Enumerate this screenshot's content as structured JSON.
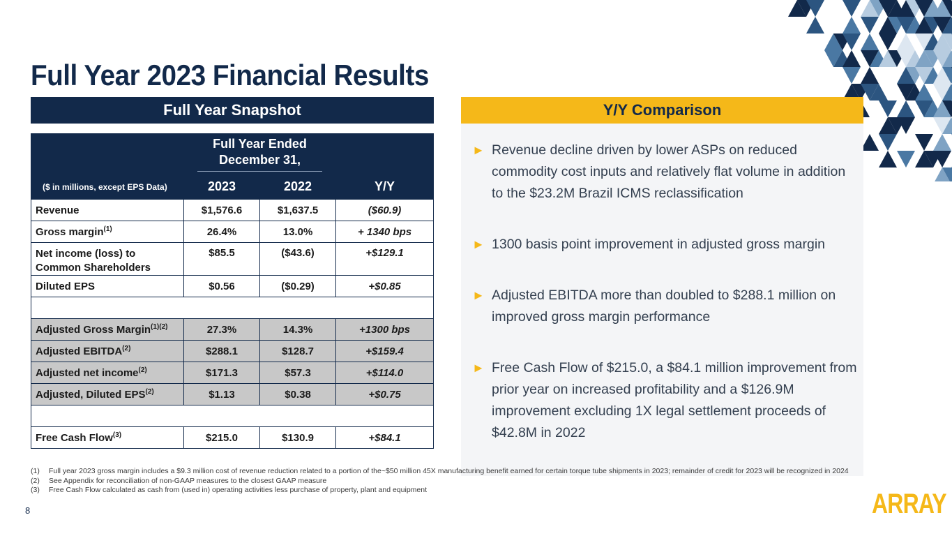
{
  "title": "Full Year 2023 Financial Results",
  "left_header": "Full Year Snapshot",
  "right_header": "Y/Y Comparison",
  "table": {
    "period_header_line1": "Full Year Ended",
    "period_header_line2": "December 31,",
    "units_label": "($ in millions, except EPS Data)",
    "col_2023": "2023",
    "col_2022": "2022",
    "col_yoy": "Y/Y",
    "rows": [
      {
        "label": "Revenue",
        "sup": "",
        "v2023": "$1,576.6",
        "v2022": "$1,637.5",
        "yoy": "($60.9)"
      },
      {
        "label": "Gross margin",
        "sup": "(1)",
        "v2023": "26.4%",
        "v2022": "13.0%",
        "yoy": "+ 1340 bps"
      },
      {
        "label_line1": "Net income (loss) to",
        "label_line2": "Common Shareholders",
        "v2023": "$85.5",
        "v2022": "($43.6)",
        "yoy": "+$129.1"
      },
      {
        "label": "Diluted EPS",
        "sup": "",
        "v2023": "$0.56",
        "v2022": "($0.29)",
        "yoy": "+$0.85"
      },
      {
        "label": "Adjusted Gross Margin",
        "sup": "(1)(2)",
        "v2023": "27.3%",
        "v2022": "14.3%",
        "yoy": "+1300 bps"
      },
      {
        "label": "Adjusted EBITDA",
        "sup": "(2)",
        "v2023": "$288.1",
        "v2022": "$128.7",
        "yoy": "+$159.4"
      },
      {
        "label": "Adjusted net income",
        "sup": "(2)",
        "v2023": "$171.3",
        "v2022": "$57.3",
        "yoy": "+$114.0"
      },
      {
        "label": "Adjusted, Diluted EPS",
        "sup": "(2)",
        "v2023": "$1.13",
        "v2022": "$0.38",
        "yoy": "+$0.75"
      },
      {
        "label": "Free Cash Flow",
        "sup": "(3)",
        "v2023": "$215.0",
        "v2022": "$130.9",
        "yoy": "+$84.1"
      }
    ]
  },
  "bullets": [
    "Revenue decline driven by lower ASPs on reduced commodity cost inputs and relatively flat volume in addition to the $23.2M Brazil ICMS reclassification",
    "1300 basis point improvement in adjusted gross margin",
    "Adjusted EBITDA more than doubled to $288.1 million on improved gross margin performance",
    "Free Cash Flow of $215.0, a $84.1 million improvement from prior year on increased profitability and a $126.9M improvement excluding 1X legal settlement proceeds of $42.8M in 2022"
  ],
  "bullet_marker": "►",
  "footnotes": [
    {
      "num": "(1)",
      "text": "Full year 2023 gross margin includes a $9.3 million cost of revenue reduction related to a portion of the~$50 million 45X manufacturing benefit earned for certain torque tube shipments in 2023; remainder of credit for 2023 will be recognized in 2024"
    },
    {
      "num": "(2)",
      "text": "See Appendix for reconciliation of non-GAAP measures to the closest GAAP measure"
    },
    {
      "num": "(3)",
      "text": "Free Cash Flow calculated as cash from (used in) operating activities less purchase of property, plant and equipment"
    }
  ],
  "page_number": "8",
  "logo_text": "ARRAY",
  "colors": {
    "navy": "#12294a",
    "gold": "#f5b819",
    "gray_row": "#c8c8c8"
  }
}
